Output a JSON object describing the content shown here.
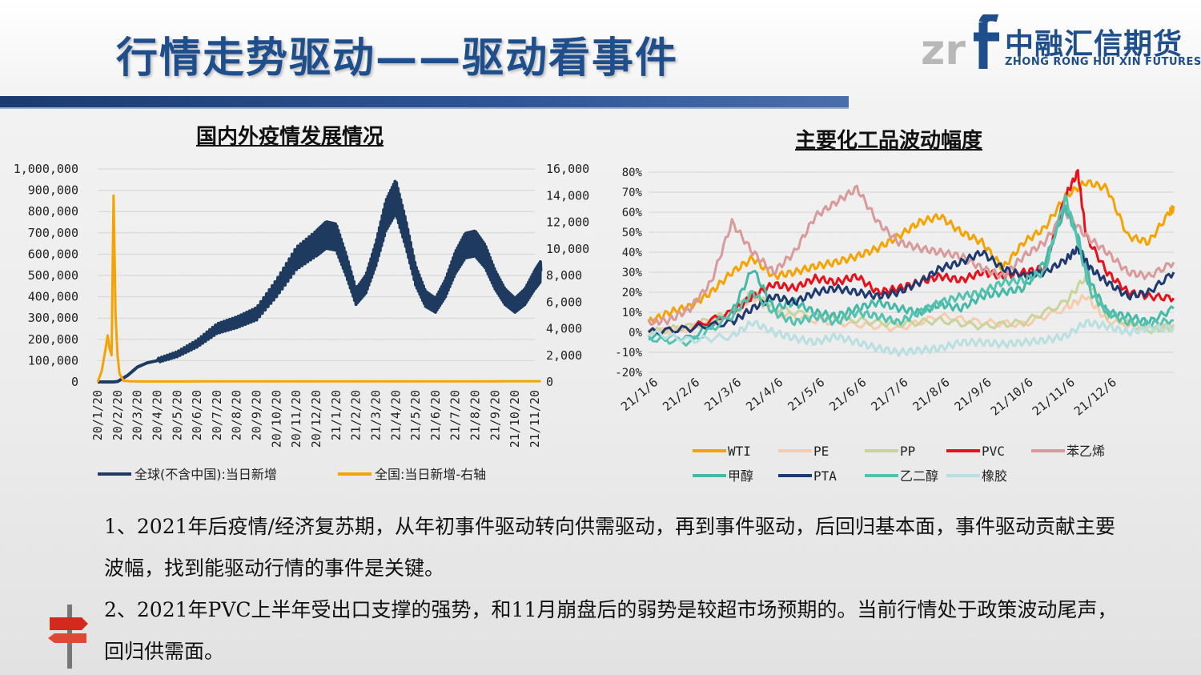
{
  "page": {
    "title": "行情走势驱动——驱动看事件",
    "logo": {
      "cn": "中融汇信期货",
      "en": "ZHONG RONG HUI XIN FUTURES",
      "mark": "zr"
    }
  },
  "colors": {
    "navy": "#1f3a5f",
    "orange": "#f5a300",
    "pvc_red": "#e8101a",
    "title_blue": "#1f4e8c"
  },
  "chart_data": [
    {
      "type": "line",
      "title": "国内外疫情发展情况",
      "x_ticks": [
        "20/1/20",
        "20/2/20",
        "20/3/20",
        "20/4/20",
        "20/5/20",
        "20/6/20",
        "20/7/20",
        "20/8/20",
        "20/9/20",
        "20/10/20",
        "20/11/20",
        "20/12/20",
        "21/1/20",
        "21/2/20",
        "21/3/20",
        "21/4/20",
        "21/5/20",
        "21/6/20",
        "21/7/20",
        "21/8/20",
        "21/9/20",
        "21/10/20",
        "21/11/20"
      ],
      "y_left_ticks": [
        "1,000,000",
        "900,000",
        "800,000",
        "700,000",
        "600,000",
        "500,000",
        "400,000",
        "300,000",
        "200,000",
        "100,000",
        "0"
      ],
      "y_right_ticks": [
        "16,000",
        "14,000",
        "12,000",
        "10,000",
        "8,000",
        "6,000",
        "4,000",
        "2,000",
        "0"
      ],
      "ylim_left": [
        0,
        1000000
      ],
      "ylim_right": [
        0,
        16000
      ],
      "series": [
        {
          "name": "全球(不含中国):当日新增",
          "axis": "left",
          "color": "#1f3a5f",
          "x": [
            0,
            0.8,
            1,
            1.5,
            2,
            2.5,
            3,
            4,
            5,
            6,
            7,
            8,
            9,
            10,
            11,
            11.5,
            12,
            12.5,
            13,
            13.5,
            14,
            14.5,
            15,
            15.5,
            16,
            16.5,
            17,
            17.5,
            18,
            18.5,
            19,
            19.5,
            20,
            20.5,
            21,
            21.5,
            22,
            22.3
          ],
          "y": [
            0,
            0,
            2000,
            30000,
            70000,
            90000,
            100000,
            130000,
            180000,
            250000,
            280000,
            320000,
            440000,
            580000,
            650000,
            690000,
            680000,
            550000,
            400000,
            460000,
            600000,
            780000,
            870000,
            700000,
            500000,
            390000,
            360000,
            440000,
            560000,
            640000,
            650000,
            590000,
            480000,
            400000,
            360000,
            400000,
            480000,
            520000
          ]
        },
        {
          "name": "全国:当日新增-右轴",
          "axis": "right",
          "color": "#f5a300",
          "x": [
            0,
            0.2,
            0.4,
            0.5,
            0.6,
            0.7,
            0.8,
            0.9,
            1.0,
            1.1,
            1.3,
            1.6,
            2,
            22.3
          ],
          "y": [
            0,
            800,
            2500,
            3500,
            2500,
            2000,
            14000,
            5000,
            2000,
            600,
            100,
            50,
            40,
            50
          ]
        }
      ],
      "legend_position": "bottom"
    },
    {
      "type": "line",
      "title": "主要化工品波动幅度",
      "x_ticks": [
        "21/1/6",
        "21/2/6",
        "21/3/6",
        "21/4/6",
        "21/5/6",
        "21/6/6",
        "21/7/6",
        "21/8/6",
        "21/9/6",
        "21/10/6",
        "21/11/6",
        "21/12/6"
      ],
      "y_ticks": [
        "80%",
        "70%",
        "60%",
        "50%",
        "40%",
        "30%",
        "20%",
        "10%",
        "0%",
        "-10%",
        "-20%"
      ],
      "ylim": [
        -0.2,
        0.8
      ],
      "x_range": [
        0,
        12.6
      ],
      "series": [
        {
          "name": "WTI",
          "color": "#f5a300",
          "x": [
            0,
            0.5,
            1,
            1.5,
            2,
            2.5,
            3,
            3.5,
            4,
            4.5,
            5,
            5.5,
            6,
            6.5,
            7,
            7.5,
            8,
            8.5,
            9,
            9.5,
            10,
            10.5,
            11,
            11.5,
            12,
            12.5,
            12.6
          ],
          "y": [
            0.05,
            0.1,
            0.13,
            0.2,
            0.3,
            0.37,
            0.28,
            0.3,
            0.33,
            0.35,
            0.38,
            0.42,
            0.48,
            0.55,
            0.58,
            0.5,
            0.45,
            0.32,
            0.45,
            0.52,
            0.68,
            0.75,
            0.72,
            0.48,
            0.45,
            0.6,
            0.62
          ]
        },
        {
          "name": "PE",
          "color": "#f9cbad",
          "x": [
            0,
            1,
            2,
            2.5,
            3,
            4,
            5,
            6,
            7,
            8,
            9,
            10,
            10.5,
            11,
            12,
            12.6
          ],
          "y": [
            0,
            0.02,
            0.08,
            0.18,
            0.1,
            0.06,
            0.04,
            0.02,
            0.08,
            0.05,
            0.04,
            0.12,
            0.18,
            0.06,
            0.02,
            0.04
          ]
        },
        {
          "name": "PP",
          "color": "#c9d39a",
          "x": [
            0,
            1,
            2,
            2.5,
            3,
            4,
            5,
            6,
            7,
            8,
            9,
            10,
            10.5,
            11,
            12,
            12.6
          ],
          "y": [
            0,
            0.03,
            0.1,
            0.2,
            0.12,
            0.08,
            0.06,
            0.04,
            0.06,
            0.03,
            0.05,
            0.15,
            0.28,
            0.08,
            0.01,
            0.03
          ]
        },
        {
          "name": "PVC",
          "color": "#e8101a",
          "x": [
            0,
            1,
            2,
            2.5,
            3,
            3.5,
            4,
            4.5,
            5,
            5.5,
            6,
            6.5,
            7,
            7.5,
            8,
            8.5,
            9,
            9.5,
            10,
            10.3,
            10.5,
            11,
            11.5,
            12,
            12.6
          ],
          "y": [
            0,
            0.02,
            0.1,
            0.18,
            0.24,
            0.22,
            0.27,
            0.25,
            0.28,
            0.2,
            0.22,
            0.25,
            0.28,
            0.26,
            0.3,
            0.28,
            0.3,
            0.32,
            0.68,
            0.8,
            0.48,
            0.3,
            0.2,
            0.18,
            0.17
          ]
        },
        {
          "name": "苯乙烯",
          "color": "#d89a9a",
          "x": [
            0,
            0.5,
            1,
            1.5,
            2,
            2.5,
            3,
            3.5,
            4,
            4.5,
            5,
            5.5,
            6,
            6.5,
            7,
            7.5,
            8,
            8.5,
            9,
            9.5,
            10,
            10.5,
            11,
            11.5,
            12,
            12.6
          ],
          "y": [
            0.05,
            0.06,
            0.12,
            0.25,
            0.55,
            0.4,
            0.3,
            0.4,
            0.58,
            0.65,
            0.72,
            0.55,
            0.45,
            0.42,
            0.4,
            0.38,
            0.32,
            0.28,
            0.38,
            0.45,
            0.6,
            0.48,
            0.4,
            0.3,
            0.28,
            0.35
          ]
        },
        {
          "name": "甲醇",
          "color": "#46b8a8",
          "x": [
            0,
            1,
            2,
            2.5,
            3,
            3.5,
            4,
            4.5,
            5,
            5.5,
            6,
            6.5,
            7,
            7.5,
            8,
            8.5,
            9,
            9.5,
            10,
            10.3,
            10.6,
            11,
            11.5,
            12,
            12.6
          ],
          "y": [
            -0.02,
            -0.03,
            0.1,
            0.32,
            0.12,
            0.15,
            0.1,
            0.08,
            0.12,
            0.15,
            0.12,
            0.1,
            0.14,
            0.12,
            0.18,
            0.2,
            0.22,
            0.35,
            0.62,
            0.48,
            0.25,
            0.1,
            0.08,
            0.05,
            0.12
          ]
        },
        {
          "name": "PTA",
          "color": "#1f3a6f",
          "x": [
            0,
            1,
            2,
            2.5,
            3,
            3.5,
            4,
            4.5,
            5,
            5.5,
            6,
            6.5,
            7,
            7.5,
            8,
            8.5,
            9,
            9.5,
            10,
            10.3,
            10.6,
            11,
            11.5,
            12,
            12.6
          ],
          "y": [
            0,
            0.02,
            0.05,
            0.12,
            0.18,
            0.15,
            0.2,
            0.22,
            0.2,
            0.18,
            0.2,
            0.25,
            0.32,
            0.35,
            0.4,
            0.32,
            0.28,
            0.3,
            0.36,
            0.42,
            0.32,
            0.25,
            0.18,
            0.2,
            0.3
          ]
        },
        {
          "name": "乙二醇",
          "color": "#55c2b0",
          "x": [
            0,
            1,
            2,
            2.5,
            3,
            3.5,
            4,
            4.5,
            5,
            5.5,
            6,
            6.5,
            7,
            7.5,
            8,
            8.5,
            9,
            9.5,
            10,
            10.3,
            10.6,
            11,
            11.5,
            12,
            12.6
          ],
          "y": [
            -0.03,
            -0.05,
            0.08,
            0.2,
            0.1,
            0.05,
            0.08,
            0.05,
            0.1,
            0.08,
            0.05,
            0.1,
            0.15,
            0.18,
            0.2,
            0.25,
            0.26,
            0.3,
            0.68,
            0.45,
            0.2,
            0.1,
            0.05,
            0.04,
            0.06
          ]
        },
        {
          "name": "橡胶",
          "color": "#b9dfe0",
          "x": [
            0,
            1,
            2,
            2.5,
            3,
            3.5,
            4,
            4.5,
            5,
            5.5,
            6,
            6.5,
            7,
            7.5,
            8,
            8.5,
            9,
            9.5,
            10,
            10.5,
            11,
            11.5,
            12,
            12.6
          ],
          "y": [
            0,
            -0.04,
            -0.02,
            0.05,
            0,
            -0.03,
            -0.05,
            -0.02,
            -0.05,
            -0.08,
            -0.1,
            -0.09,
            -0.08,
            -0.05,
            -0.05,
            -0.06,
            -0.05,
            -0.04,
            -0.02,
            0.05,
            0.03,
            0,
            0.02,
            0.02
          ]
        }
      ],
      "legend_position": "bottom"
    }
  ],
  "text": {
    "para1": "1、2021年后疫情/经济复苏期，从年初事件驱动转向供需驱动，再到事件驱动，后回归基本面，事件驱动贡献主要波幅，找到能驱动行情的事件是关键。",
    "para2": "2、2021年PVC上半年受出口支撑的强势，和11月崩盘后的弱势是较超市场预期的。当前行情处于政策波动尾声，回归供需面。"
  }
}
